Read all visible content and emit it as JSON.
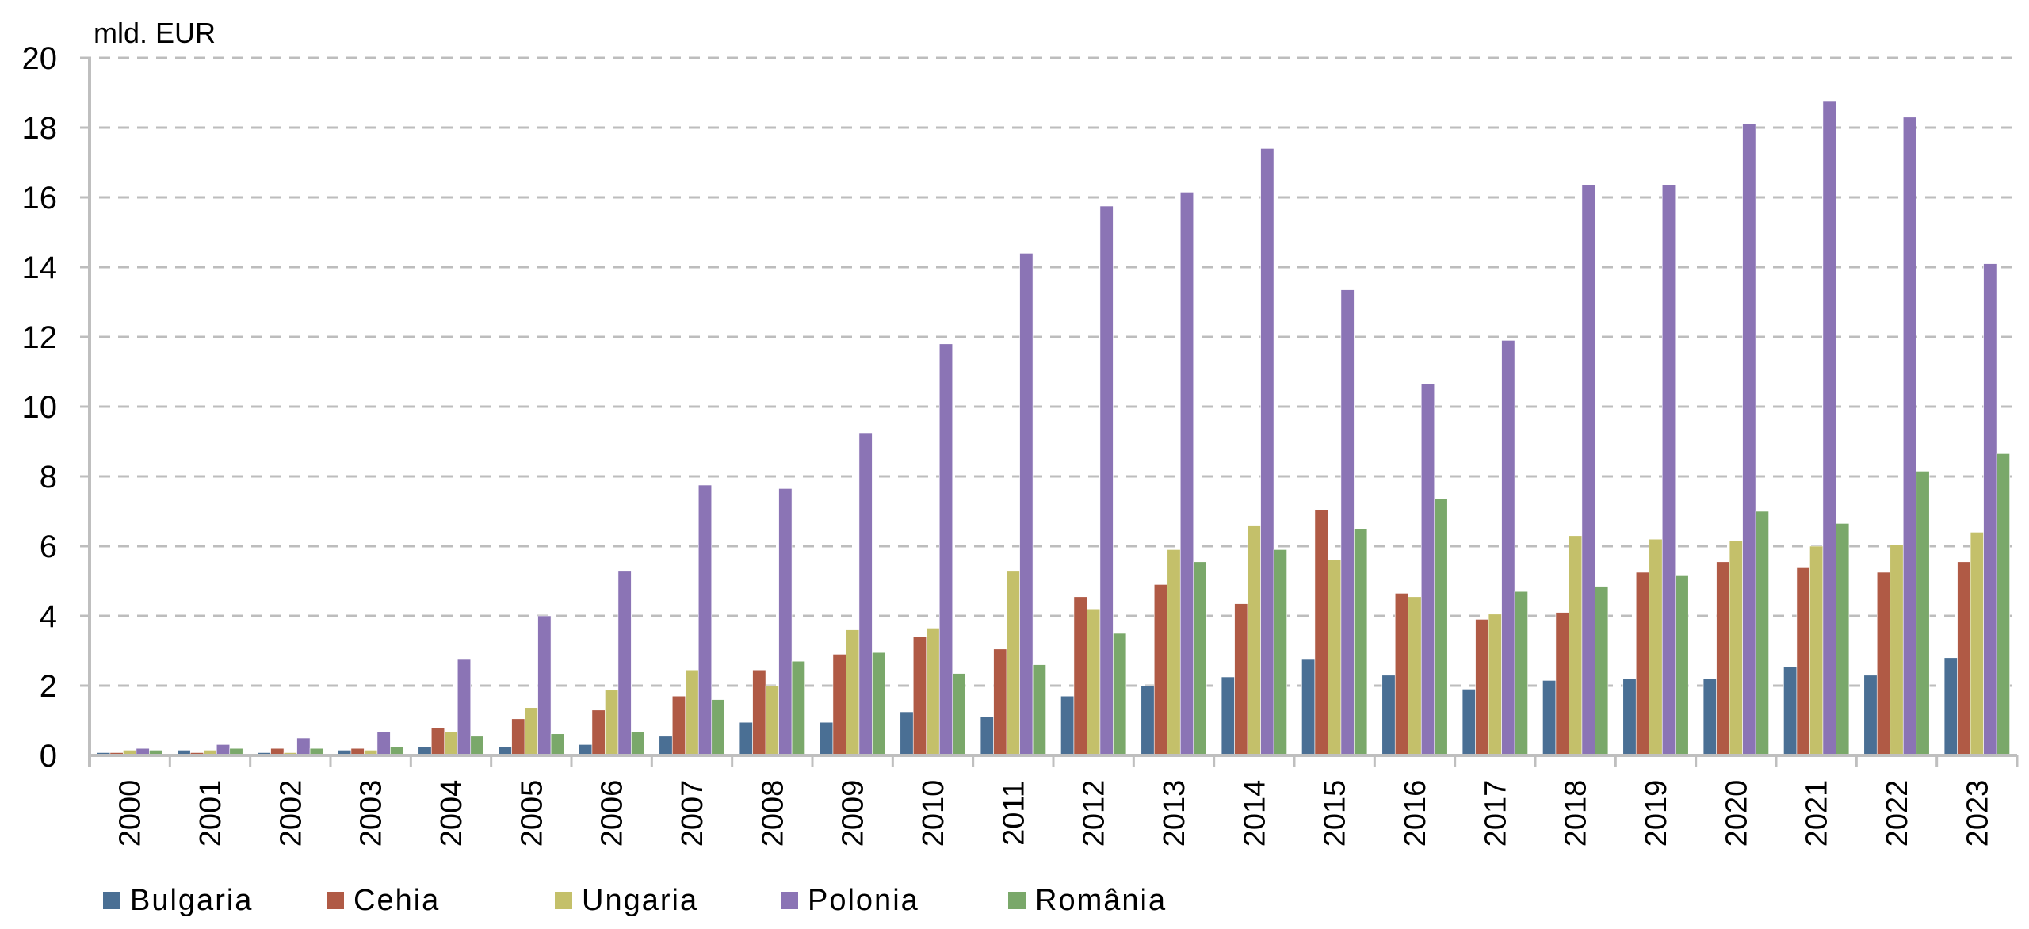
{
  "chart_data": {
    "type": "bar",
    "title": "",
    "ylabel": "mld. EUR",
    "xlabel": "",
    "ylim": [
      0,
      20
    ],
    "yticks": [
      0,
      2,
      4,
      6,
      8,
      10,
      12,
      14,
      16,
      18,
      20
    ],
    "grid": true,
    "legend_position": "bottom",
    "categories": [
      "2000",
      "2001",
      "2002",
      "2003",
      "2004",
      "2005",
      "2006",
      "2007",
      "2008",
      "2009",
      "2010",
      "2011",
      "2012",
      "2013",
      "2014",
      "2015",
      "2016",
      "2017",
      "2018",
      "2019",
      "2020",
      "2021",
      "2022",
      "2023"
    ],
    "series": [
      {
        "name": "Bulgaria",
        "color": "#4a6f94",
        "values": [
          0.08,
          0.15,
          0.08,
          0.15,
          0.25,
          0.25,
          0.31,
          0.55,
          0.95,
          0.95,
          1.25,
          1.1,
          1.7,
          2.0,
          2.25,
          2.75,
          2.3,
          1.9,
          2.15,
          2.2,
          2.2,
          2.55,
          2.3,
          2.8
        ]
      },
      {
        "name": "Cehia",
        "color": "#b05a45",
        "values": [
          0.08,
          0.08,
          0.2,
          0.2,
          0.8,
          1.05,
          1.3,
          1.7,
          2.45,
          2.9,
          3.4,
          3.05,
          4.55,
          4.9,
          4.35,
          7.05,
          4.65,
          3.9,
          4.1,
          5.25,
          5.55,
          5.4,
          5.25,
          5.55
        ]
      },
      {
        "name": "Ungaria",
        "color": "#c4c06a",
        "values": [
          0.15,
          0.15,
          0.08,
          0.15,
          0.68,
          1.37,
          1.87,
          2.45,
          2.0,
          3.6,
          3.65,
          5.3,
          4.2,
          5.9,
          6.6,
          5.6,
          4.55,
          4.05,
          6.3,
          6.2,
          6.15,
          6.0,
          6.05,
          6.4
        ]
      },
      {
        "name": "Polonia",
        "color": "#8b74b5",
        "values": [
          0.2,
          0.31,
          0.5,
          0.68,
          2.75,
          4.0,
          5.3,
          7.75,
          7.65,
          9.25,
          11.8,
          14.4,
          15.75,
          16.15,
          17.4,
          13.35,
          10.65,
          11.9,
          16.35,
          16.35,
          18.1,
          18.75,
          18.3,
          14.1
        ]
      },
      {
        "name": "România",
        "color": "#7aa86a",
        "values": [
          0.15,
          0.2,
          0.2,
          0.25,
          0.55,
          0.62,
          0.68,
          1.6,
          2.7,
          2.95,
          2.35,
          2.6,
          3.5,
          5.55,
          5.9,
          6.5,
          7.35,
          4.7,
          4.85,
          5.15,
          7.0,
          6.65,
          8.15,
          8.65
        ]
      }
    ]
  }
}
